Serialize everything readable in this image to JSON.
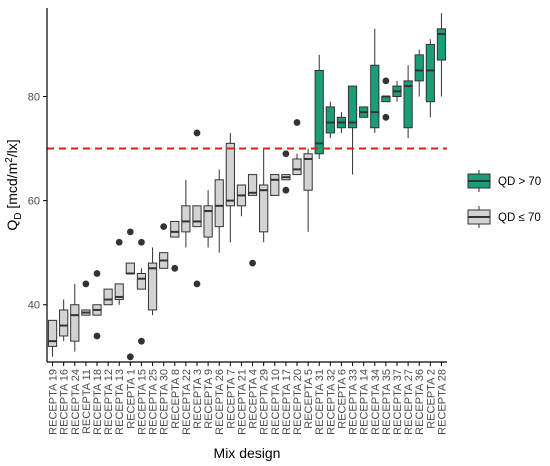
{
  "chart_data": {
    "type": "boxplot",
    "xlabel": "Mix design",
    "ylabel": {
      "main": "Q",
      "sub": "D",
      "unit_prefix": " [mcd/m",
      "sup": "2",
      "unit_suffix": "/lx]"
    },
    "ylim": [
      29,
      97
    ],
    "yticks": [
      40,
      60,
      80
    ],
    "threshold": {
      "value": 70,
      "color": "#e41a1c",
      "style": "dashed"
    },
    "legend": {
      "placement": "right",
      "items": [
        {
          "key": "high",
          "label": "QD > 70",
          "color": "#1b9e77"
        },
        {
          "key": "low",
          "label": "QD ≤ 70",
          "color": "#d3d3d3"
        }
      ]
    },
    "groups": [
      {
        "name": "RECEPTA 19",
        "group": "low",
        "wlo": 30,
        "q1": 32,
        "median": 33,
        "q3": 37,
        "whi": 37,
        "outliers": []
      },
      {
        "name": "RECEPTA 16",
        "group": "low",
        "wlo": 33,
        "q1": 34,
        "median": 36,
        "q3": 39,
        "whi": 41,
        "outliers": []
      },
      {
        "name": "RECEPTA 24",
        "group": "low",
        "wlo": 31,
        "q1": 33,
        "median": 38,
        "q3": 40,
        "whi": 44,
        "outliers": []
      },
      {
        "name": "RECEPTA 11",
        "group": "low",
        "wlo": 38,
        "q1": 38,
        "median": 38.5,
        "q3": 39,
        "whi": 39,
        "outliers": [
          44
        ]
      },
      {
        "name": "RECEPTA 18",
        "group": "low",
        "wlo": 38,
        "q1": 38,
        "median": 39,
        "q3": 40,
        "whi": 40,
        "outliers": [
          34,
          46
        ]
      },
      {
        "name": "RECEPTA 12",
        "group": "low",
        "wlo": 40,
        "q1": 40,
        "median": 41,
        "q3": 43,
        "whi": 43,
        "outliers": []
      },
      {
        "name": "RECEPTA 13",
        "group": "low",
        "wlo": 40,
        "q1": 41,
        "median": 41.5,
        "q3": 44,
        "whi": 44,
        "outliers": [
          52
        ]
      },
      {
        "name": "RECEPTA 1",
        "group": "low",
        "wlo": 46,
        "q1": 46,
        "median": 46,
        "q3": 48,
        "whi": 48,
        "outliers": [
          30,
          54
        ]
      },
      {
        "name": "RECEPTA 15",
        "group": "low",
        "wlo": 43,
        "q1": 43,
        "median": 45,
        "q3": 46,
        "whi": 47,
        "outliers": [
          33,
          52
        ]
      },
      {
        "name": "RECEPTA 25",
        "group": "low",
        "wlo": 38,
        "q1": 39,
        "median": 47,
        "q3": 48,
        "whi": 51,
        "outliers": []
      },
      {
        "name": "RECEPTA 30",
        "group": "low",
        "wlo": 47,
        "q1": 47,
        "median": 48.5,
        "q3": 50,
        "whi": 50,
        "outliers": [
          55
        ]
      },
      {
        "name": "RECEPTA 8",
        "group": "low",
        "wlo": 53,
        "q1": 53,
        "median": 54,
        "q3": 56,
        "whi": 56,
        "outliers": [
          47
        ]
      },
      {
        "name": "RECEPTA 22",
        "group": "low",
        "wlo": 51,
        "q1": 54,
        "median": 56,
        "q3": 59,
        "whi": 64,
        "outliers": []
      },
      {
        "name": "RECEPTA 3",
        "group": "low",
        "wlo": 55,
        "q1": 55,
        "median": 56,
        "q3": 59,
        "whi": 59,
        "outliers": [
          44,
          73
        ]
      },
      {
        "name": "RECEPTA 9",
        "group": "low",
        "wlo": 51,
        "q1": 53,
        "median": 58,
        "q3": 59,
        "whi": 62,
        "outliers": []
      },
      {
        "name": "RECEPTA 26",
        "group": "low",
        "wlo": 50,
        "q1": 55,
        "median": 59,
        "q3": 64,
        "whi": 66,
        "outliers": []
      },
      {
        "name": "RECEPTA 7",
        "group": "low",
        "wlo": 52,
        "q1": 59,
        "median": 60,
        "q3": 71,
        "whi": 73,
        "outliers": []
      },
      {
        "name": "RECEPTA 21",
        "group": "low",
        "wlo": 57,
        "q1": 59,
        "median": 61,
        "q3": 63,
        "whi": 63,
        "outliers": []
      },
      {
        "name": "RECEPTA 4",
        "group": "low",
        "wlo": 61,
        "q1": 61,
        "median": 61.5,
        "q3": 65,
        "whi": 65,
        "outliers": [
          48
        ]
      },
      {
        "name": "RECEPTA 29",
        "group": "low",
        "wlo": 52,
        "q1": 54,
        "median": 62,
        "q3": 63,
        "whi": 70,
        "outliers": []
      },
      {
        "name": "RECEPTA 10",
        "group": "low",
        "wlo": 61,
        "q1": 61,
        "median": 64,
        "q3": 65,
        "whi": 65,
        "outliers": []
      },
      {
        "name": "RECEPTA 17",
        "group": "low",
        "wlo": 64,
        "q1": 64,
        "median": 64.5,
        "q3": 65,
        "whi": 65,
        "outliers": [
          62,
          69
        ]
      },
      {
        "name": "RECEPTA 20",
        "group": "low",
        "wlo": 65,
        "q1": 65,
        "median": 66,
        "q3": 68,
        "whi": 69,
        "outliers": [
          75
        ]
      },
      {
        "name": "RECEPTA 5",
        "group": "low",
        "wlo": 54,
        "q1": 62,
        "median": 68,
        "q3": 69,
        "whi": 70,
        "outliers": []
      },
      {
        "name": "RECEPTA 31",
        "group": "high",
        "wlo": 68,
        "q1": 69,
        "median": 71,
        "q3": 85,
        "whi": 88,
        "outliers": []
      },
      {
        "name": "RECEPTA 32",
        "group": "high",
        "wlo": 72,
        "q1": 73,
        "median": 75,
        "q3": 78,
        "whi": 79,
        "outliers": []
      },
      {
        "name": "RECEPTA 6",
        "group": "high",
        "wlo": 73,
        "q1": 74,
        "median": 75,
        "q3": 76,
        "whi": 77,
        "outliers": []
      },
      {
        "name": "RECEPTA 33",
        "group": "high",
        "wlo": 65,
        "q1": 74,
        "median": 75,
        "q3": 82,
        "whi": 82,
        "outliers": []
      },
      {
        "name": "RECEPTA 14",
        "group": "high",
        "wlo": 76,
        "q1": 76,
        "median": 77,
        "q3": 78,
        "whi": 78,
        "outliers": []
      },
      {
        "name": "RECEPTA 34",
        "group": "high",
        "wlo": 73,
        "q1": 74,
        "median": 77,
        "q3": 86,
        "whi": 93,
        "outliers": []
      },
      {
        "name": "RECEPTA 35",
        "group": "high",
        "wlo": 79,
        "q1": 79,
        "median": 80,
        "q3": 80,
        "whi": 80,
        "outliers": [
          76,
          83
        ]
      },
      {
        "name": "RECEPTA 37",
        "group": "high",
        "wlo": 79,
        "q1": 80,
        "median": 81,
        "q3": 82,
        "whi": 83,
        "outliers": []
      },
      {
        "name": "RECEPTA 27",
        "group": "high",
        "wlo": 72,
        "q1": 74,
        "median": 82,
        "q3": 83,
        "whi": 86,
        "outliers": []
      },
      {
        "name": "RECEPTA 36",
        "group": "high",
        "wlo": 80,
        "q1": 83,
        "median": 85,
        "q3": 88,
        "whi": 89,
        "outliers": []
      },
      {
        "name": "RECEPTA 2",
        "group": "high",
        "wlo": 76,
        "q1": 79,
        "median": 85,
        "q3": 90,
        "whi": 91,
        "outliers": []
      },
      {
        "name": "RECEPTA 28",
        "group": "high",
        "wlo": 80,
        "q1": 87,
        "median": 92,
        "q3": 93,
        "whi": 96,
        "outliers": []
      }
    ]
  }
}
